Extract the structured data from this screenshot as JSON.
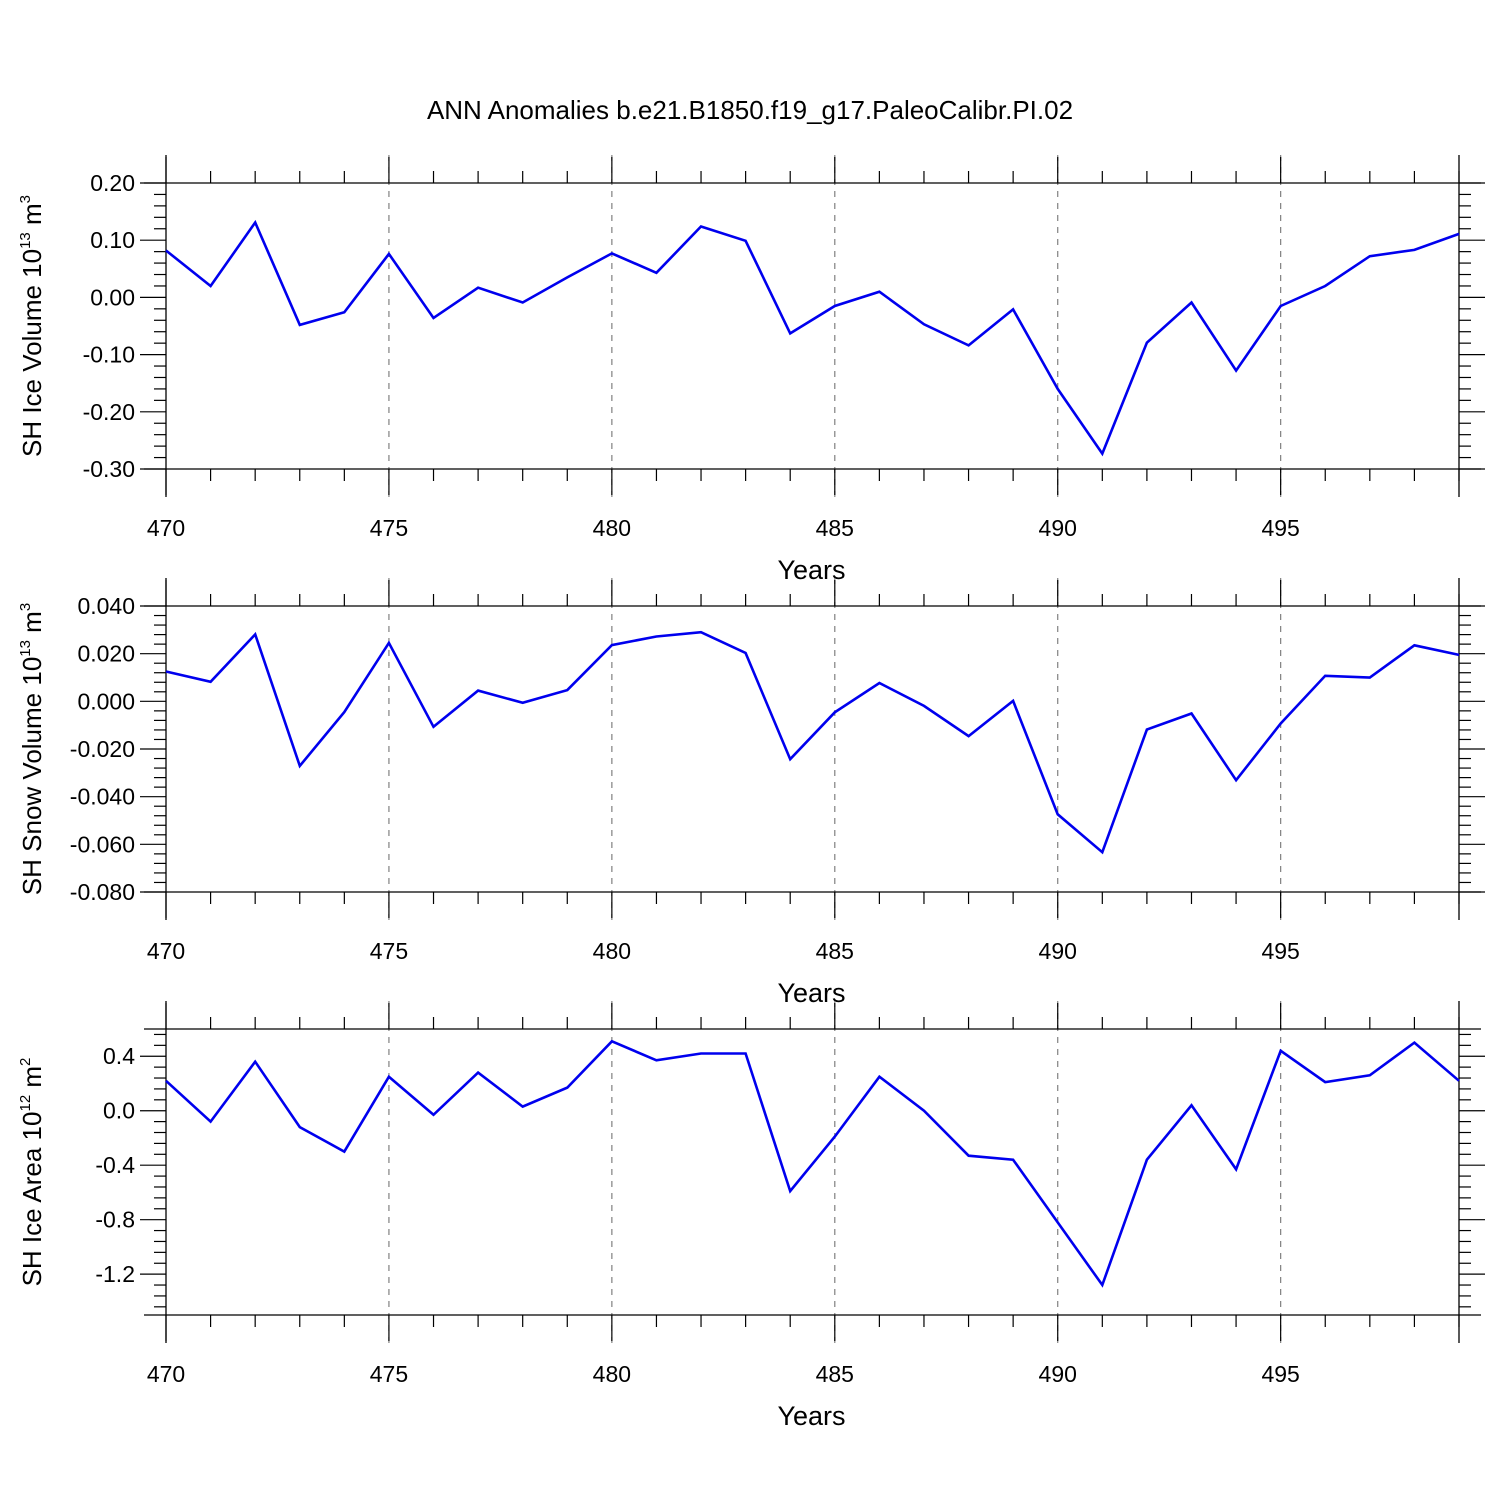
{
  "title": "ANN Anomalies b.e21.B1850.f19_g17.PaleoCalibr.PI.02",
  "colors": {
    "line": "#0000ee",
    "axes": "#000000",
    "grid": "#808080",
    "background": "#ffffff"
  },
  "chart_data": [
    {
      "type": "line",
      "xlabel": "Years",
      "ylabel": {
        "prefix": "SH Ice Volume 10",
        "exponent": "13",
        "unit": " m",
        "unit_exponent": "3"
      },
      "xlim": [
        470,
        499
      ],
      "ylim": [
        -0.3,
        0.2
      ],
      "grid": "vertical dashed at major x ticks",
      "x_ticks": [
        470,
        475,
        480,
        485,
        490,
        495
      ],
      "x_tick_labels": [
        "470",
        "475",
        "480",
        "485",
        "490",
        "495"
      ],
      "y_ticks": [
        0.2,
        0.1,
        0.0,
        -0.1,
        -0.2,
        -0.3
      ],
      "y_tick_labels": [
        "0.20",
        "0.10",
        "0.00",
        "-0.10",
        "-0.20",
        "-0.30"
      ],
      "x": [
        470,
        471,
        472,
        473,
        474,
        475,
        476,
        477,
        478,
        479,
        480,
        481,
        482,
        483,
        484,
        485,
        486,
        487,
        488,
        489,
        490,
        491,
        492,
        493,
        494,
        495,
        496,
        497,
        498,
        499
      ],
      "series": [
        {
          "values": [
            0.082,
            0.02,
            0.131,
            -0.048,
            -0.026,
            0.076,
            -0.036,
            0.017,
            -0.009,
            0.035,
            0.077,
            0.043,
            0.124,
            0.099,
            -0.063,
            -0.015,
            0.01,
            -0.047,
            -0.084,
            -0.021,
            -0.16,
            -0.273,
            -0.079,
            -0.009,
            -0.128,
            -0.015,
            0.02,
            0.072,
            0.083,
            0.111
          ]
        }
      ]
    },
    {
      "type": "line",
      "xlabel": "Years",
      "ylabel": {
        "prefix": "SH Snow Volume 10",
        "exponent": "13",
        "unit": " m",
        "unit_exponent": "3"
      },
      "xlim": [
        470,
        499
      ],
      "ylim": [
        -0.08,
        0.04
      ],
      "grid": "vertical dashed at major x ticks",
      "x_ticks": [
        470,
        475,
        480,
        485,
        490,
        495
      ],
      "x_tick_labels": [
        "470",
        "475",
        "480",
        "485",
        "490",
        "495"
      ],
      "y_ticks": [
        0.04,
        0.02,
        0.0,
        -0.02,
        -0.04,
        -0.06,
        -0.08
      ],
      "y_tick_labels": [
        "0.040",
        "0.020",
        "0.000",
        "-0.020",
        "-0.040",
        "-0.060",
        "-0.080"
      ],
      "x": [
        470,
        471,
        472,
        473,
        474,
        475,
        476,
        477,
        478,
        479,
        480,
        481,
        482,
        483,
        484,
        485,
        486,
        487,
        488,
        489,
        490,
        491,
        492,
        493,
        494,
        495,
        496,
        497,
        498,
        499
      ],
      "series": [
        {
          "values": [
            0.0125,
            0.0082,
            0.0281,
            -0.0271,
            -0.0045,
            0.0245,
            -0.0107,
            0.0045,
            -0.0006,
            0.0047,
            0.0236,
            0.0272,
            0.029,
            0.0203,
            -0.0243,
            -0.0046,
            0.0077,
            -0.0019,
            -0.0146,
            0.0002,
            -0.0474,
            -0.0633,
            -0.0118,
            -0.0051,
            -0.0331,
            -0.0093,
            0.0107,
            0.01,
            0.0235,
            0.0195
          ]
        }
      ]
    },
    {
      "type": "line",
      "xlabel": "Years",
      "ylabel": {
        "prefix": "SH Ice Area 10",
        "exponent": "12",
        "unit": " m",
        "unit_exponent": "2"
      },
      "xlim": [
        470,
        499
      ],
      "ylim": [
        -1.5,
        0.6
      ],
      "grid": "vertical dashed at major x ticks",
      "x_ticks": [
        470,
        475,
        480,
        485,
        490,
        495
      ],
      "x_tick_labels": [
        "470",
        "475",
        "480",
        "485",
        "490",
        "495"
      ],
      "y_ticks": [
        0.4,
        0.0,
        -0.4,
        -0.8,
        -1.2
      ],
      "y_tick_labels": [
        "0.4",
        "0.0",
        "-0.4",
        "-0.8",
        "-1.2"
      ],
      "x": [
        470,
        471,
        472,
        473,
        474,
        475,
        476,
        477,
        478,
        479,
        480,
        481,
        482,
        483,
        484,
        485,
        486,
        487,
        488,
        489,
        490,
        491,
        492,
        493,
        494,
        495,
        496,
        497,
        498,
        499
      ],
      "series": [
        {
          "values": [
            0.22,
            -0.08,
            0.36,
            -0.12,
            -0.3,
            0.25,
            -0.03,
            0.28,
            0.03,
            0.17,
            0.51,
            0.37,
            0.42,
            0.42,
            -0.59,
            -0.19,
            0.25,
            0.0,
            -0.33,
            -0.36,
            -0.82,
            -1.28,
            -0.36,
            0.04,
            -0.43,
            0.44,
            0.21,
            0.26,
            0.5,
            0.22
          ]
        }
      ]
    }
  ]
}
